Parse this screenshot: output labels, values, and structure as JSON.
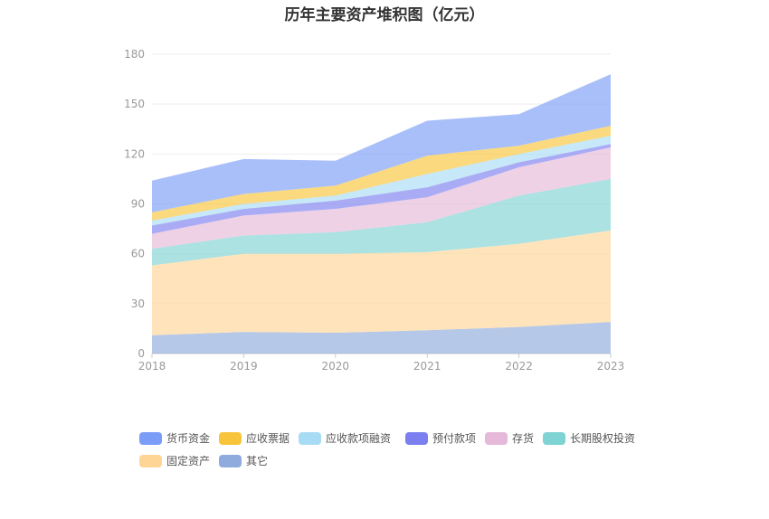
{
  "chart_data": {
    "type": "area",
    "title": "历年主要资产堆积图（亿元）",
    "categories": [
      "2018",
      "2019",
      "2020",
      "2021",
      "2022",
      "2023"
    ],
    "ylim": [
      0,
      180
    ],
    "yticks": [
      0,
      30,
      60,
      90,
      120,
      150,
      180
    ],
    "stacked": true,
    "grid": true,
    "legend_position": "bottom",
    "series": [
      {
        "name": "其它",
        "color": "#8faadc",
        "values": [
          11,
          13,
          12.5,
          14,
          16,
          19
        ]
      },
      {
        "name": "固定资产",
        "color": "#ffd596",
        "values": [
          42,
          47,
          47.5,
          47,
          50,
          55
        ]
      },
      {
        "name": "长期股权投资",
        "color": "#7fd3d3",
        "values": [
          10,
          11,
          13,
          18,
          29,
          31
        ]
      },
      {
        "name": "存货",
        "color": "#e6b8d9",
        "values": [
          9,
          12,
          14,
          15,
          17,
          19
        ]
      },
      {
        "name": "预付款项",
        "color": "#7b7ff0",
        "values": [
          5,
          4,
          5,
          6,
          3,
          2
        ]
      },
      {
        "name": "应收款项融资",
        "color": "#a8dcf5",
        "values": [
          3,
          3,
          3,
          8,
          5,
          5
        ]
      },
      {
        "name": "应收票据",
        "color": "#f8c43b",
        "values": [
          5,
          6,
          6,
          11,
          5,
          6
        ]
      },
      {
        "name": "货币资金",
        "color": "#7b9cf7",
        "values": [
          19,
          21,
          15,
          21,
          19,
          31
        ]
      }
    ],
    "legend_order": [
      "货币资金",
      "应收票据",
      "应收款项融资",
      "预付款项",
      "存货",
      "长期股权投资",
      "固定资产",
      "其它"
    ]
  }
}
